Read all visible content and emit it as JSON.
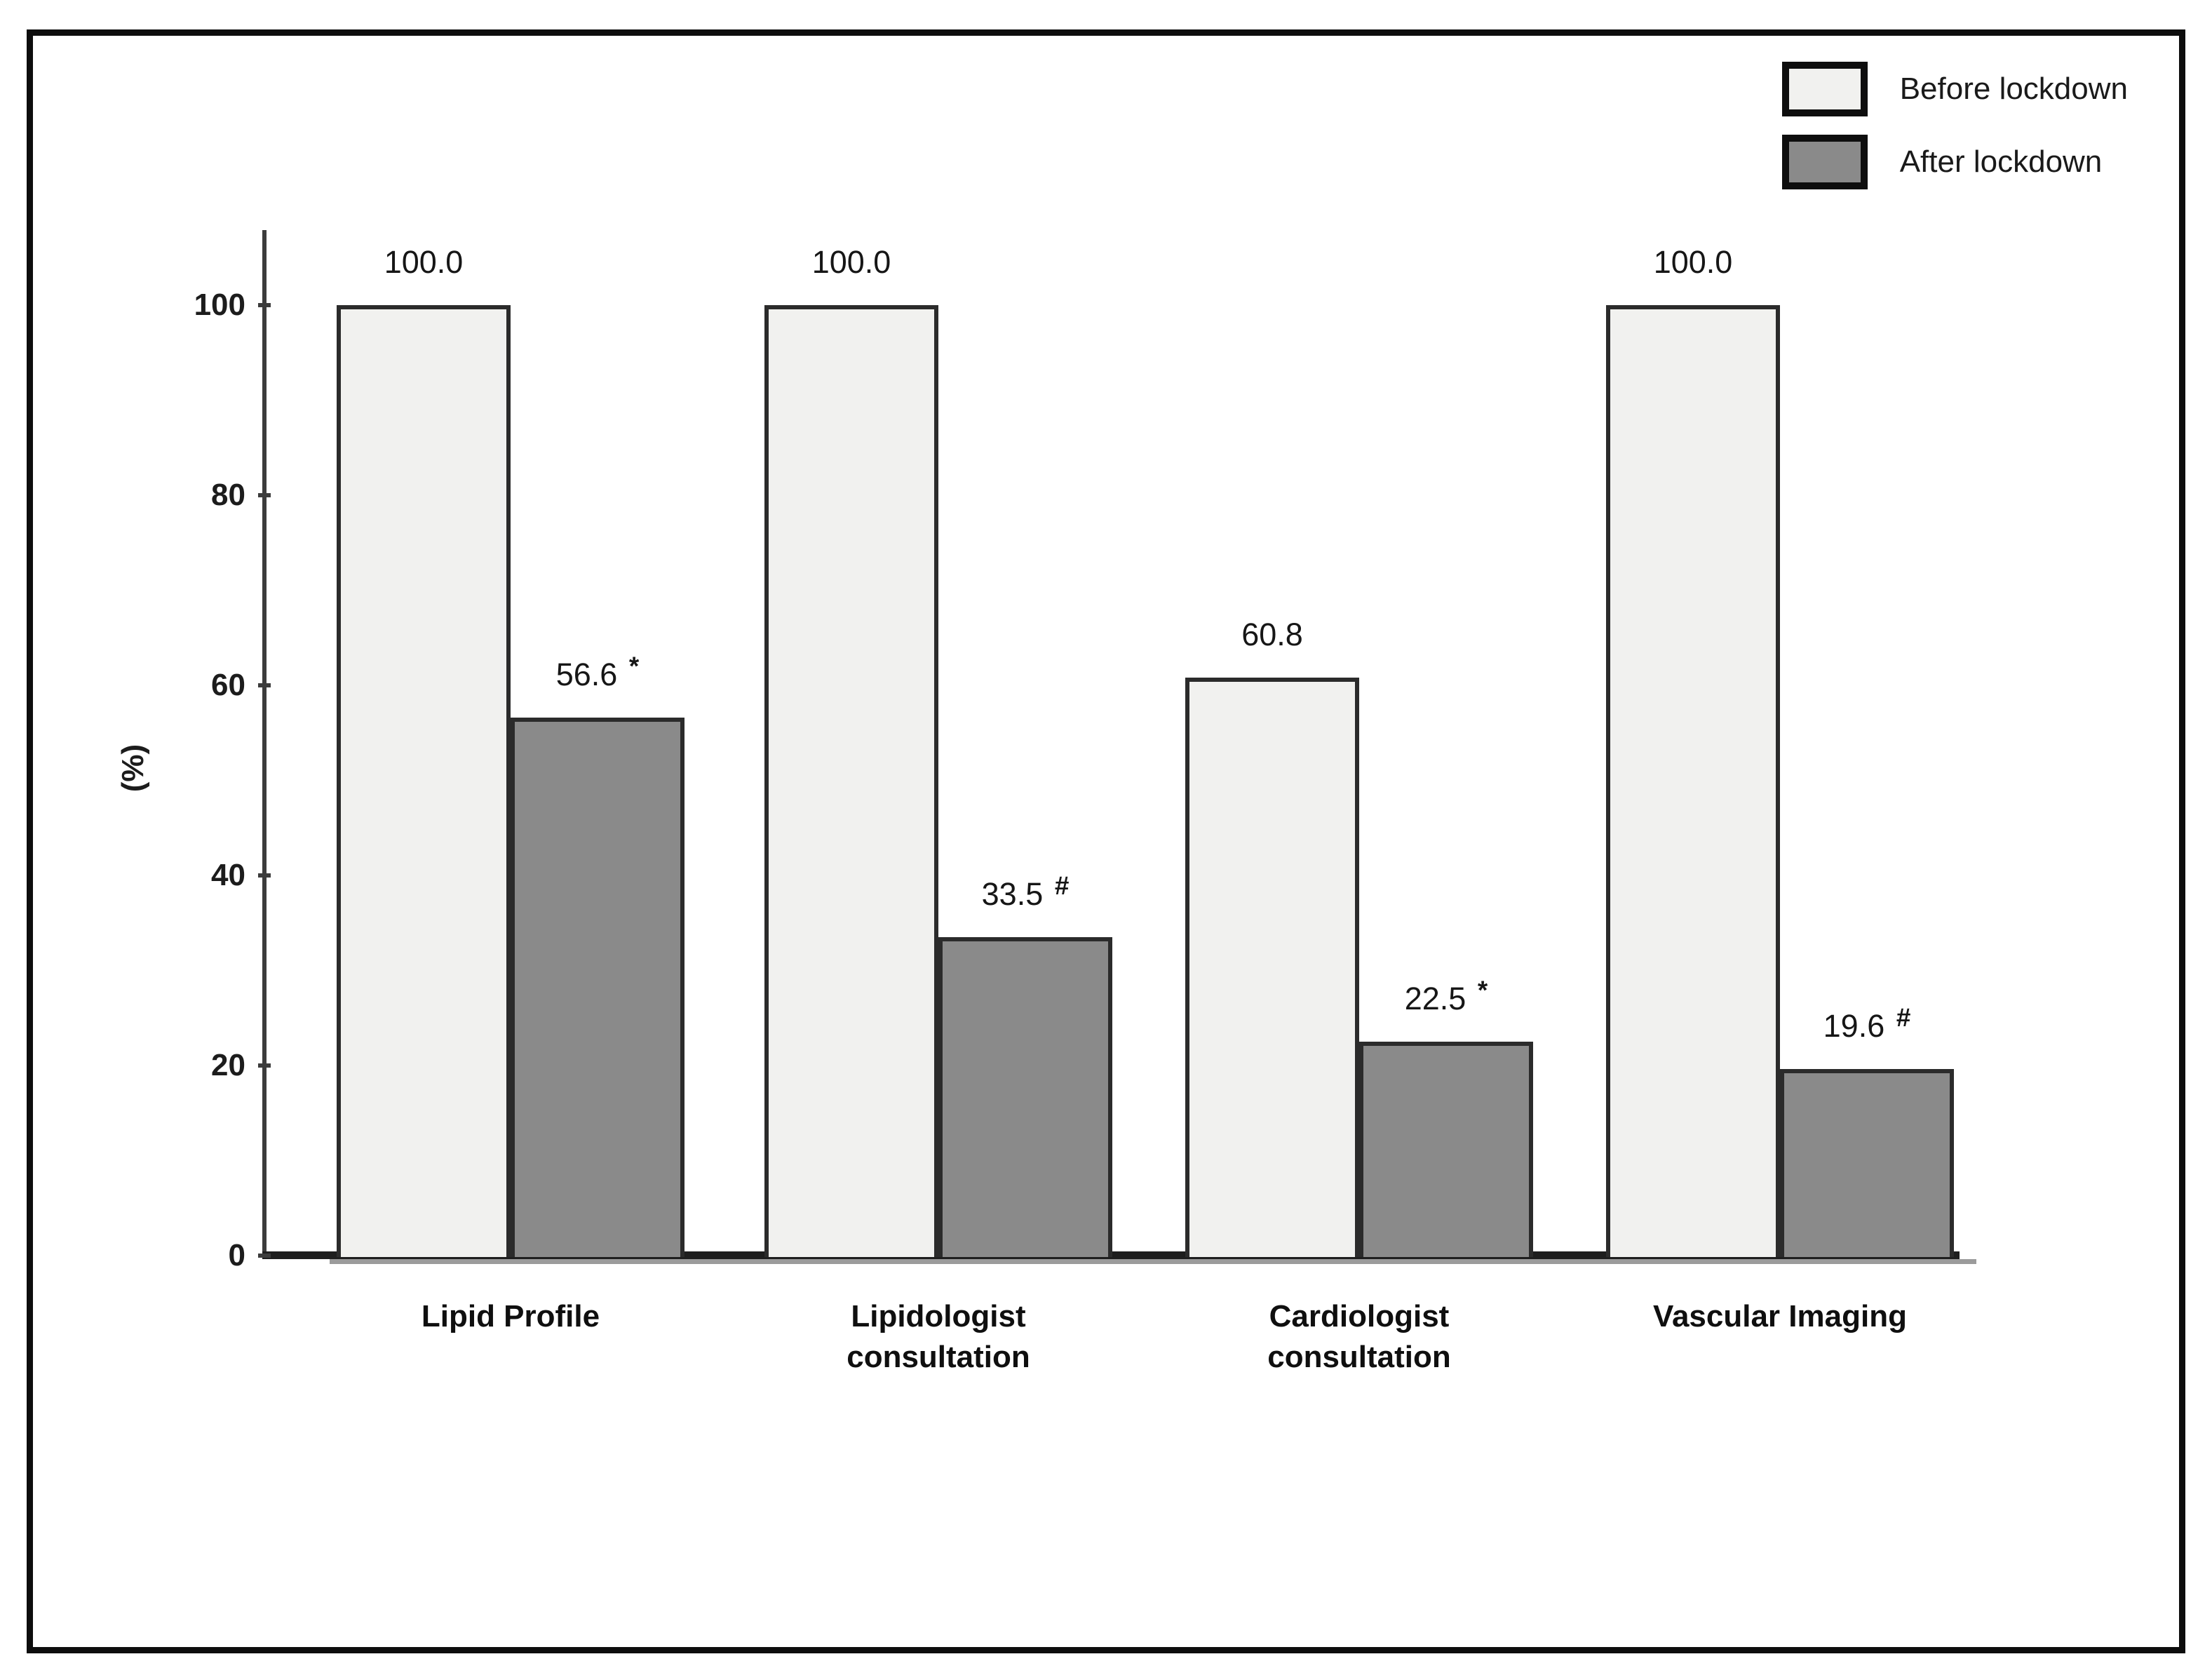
{
  "figure": {
    "background_color": "#ffffff",
    "frame_border_color": "#0d0d0d"
  },
  "chart_data": {
    "type": "bar",
    "title": "",
    "xlabel": "",
    "ylabel": "(%)",
    "categories": [
      "Lipid Profile",
      "Lipidologist\nconsultation",
      "Cardiologist\nconsultation",
      "Vascular Imaging"
    ],
    "series": [
      {
        "name": "Before lockdown",
        "values": [
          100.0,
          100.0,
          60.8,
          100.0
        ],
        "labels": [
          "100.0",
          "100.0",
          "60.8",
          "100.0"
        ],
        "markers": [
          "",
          "",
          "",
          ""
        ],
        "color": "#f1f1ef",
        "border_color": "#2b2b2b"
      },
      {
        "name": "After lockdown",
        "values": [
          56.6,
          33.5,
          22.5,
          19.6
        ],
        "labels": [
          "56.6",
          "33.5",
          "22.5",
          "19.6"
        ],
        "markers": [
          "*",
          "#",
          "*",
          "#"
        ],
        "color": "#8a8a8a",
        "border_color": "#2b2b2b"
      }
    ],
    "yticks": [
      0,
      20,
      40,
      60,
      80,
      100
    ],
    "ylim": [
      0,
      108
    ],
    "grid": false,
    "legend_position": "top-right"
  }
}
